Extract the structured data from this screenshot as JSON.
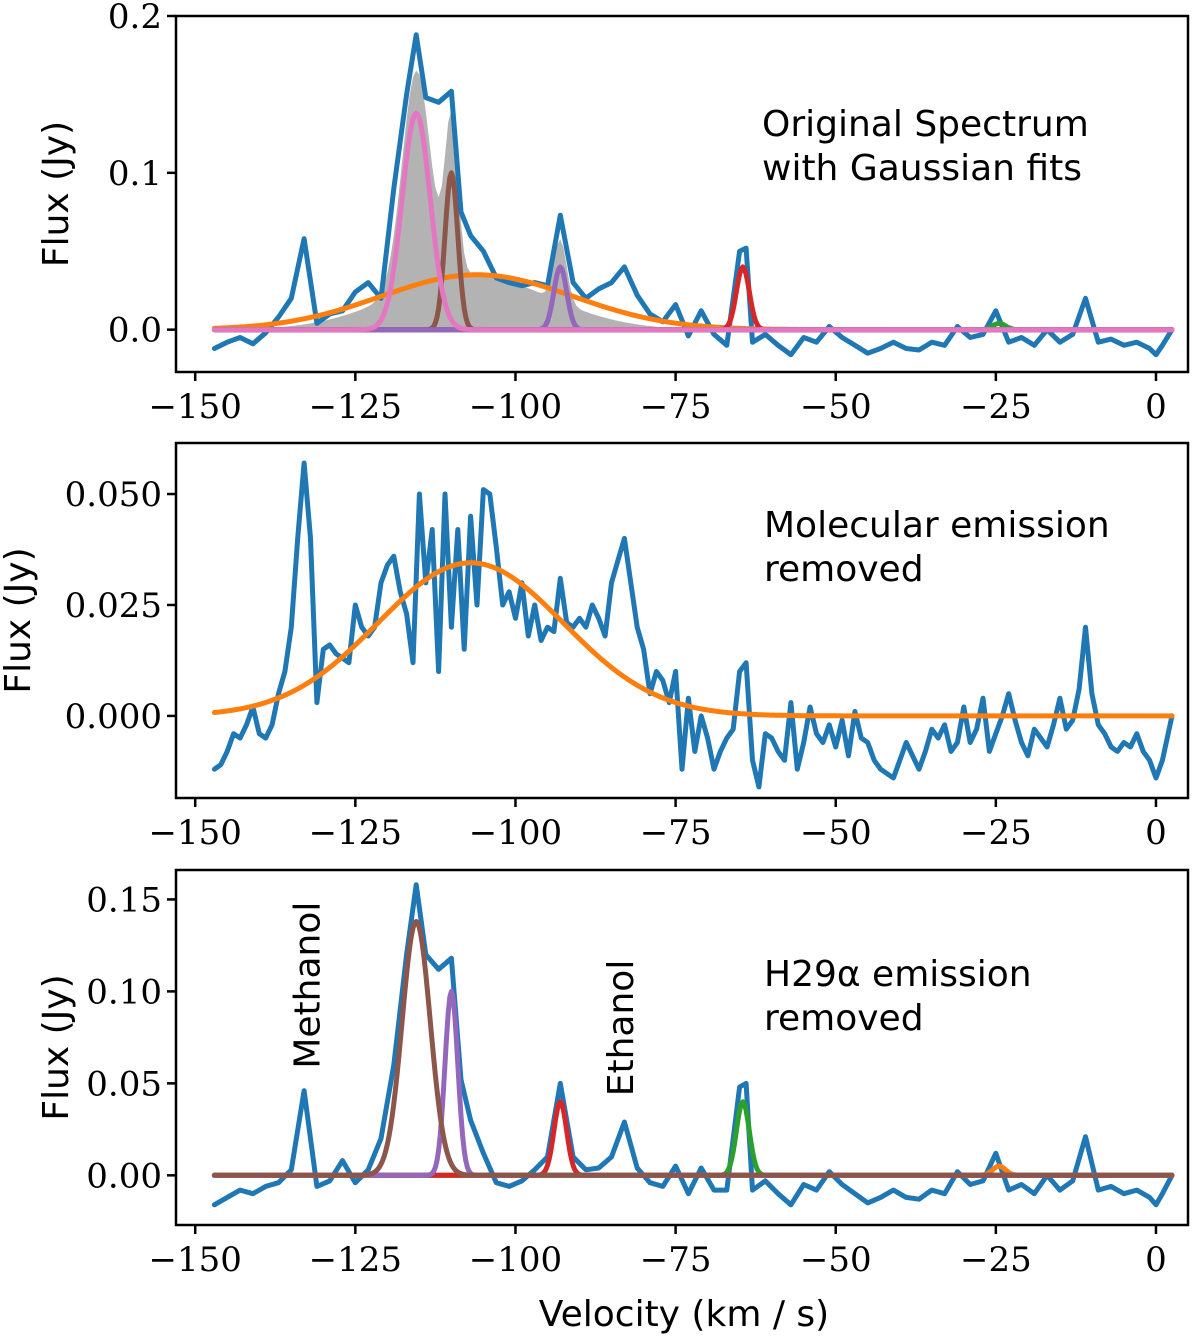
{
  "xlabel": "Velocity (km / s)",
  "colors": {
    "blue": "#1f77b4",
    "orange": "#ff7f0e",
    "green": "#2ca02c",
    "red": "#d62728",
    "purple": "#9467bd",
    "brown": "#8c564b",
    "pink": "#e377c2",
    "gray": "#b3b3b3"
  },
  "chart_data": [
    {
      "type": "line",
      "name": "top",
      "ylabel": "Flux (Jy)",
      "xlim": [
        -153,
        5
      ],
      "ylim": [
        -0.027,
        0.2
      ],
      "xticks": [
        -150,
        -125,
        -100,
        -75,
        -50,
        -25,
        0
      ],
      "xtick_labels": [
        "−150",
        "−125",
        "−100",
        "−75",
        "−50",
        "−25",
        "0"
      ],
      "yticks": [
        0.0,
        0.1,
        0.2
      ],
      "ytick_labels": [
        "0.0",
        "0.1",
        "0.2"
      ],
      "annotation": [
        "Original Spectrum",
        "with Gaussian fits"
      ],
      "spectrum": {
        "name": "observed",
        "color": "blue",
        "x": [
          -147,
          -145,
          -143,
          -141,
          -139,
          -137,
          -135,
          -133,
          -131,
          -129,
          -127,
          -125,
          -123,
          -121,
          -119,
          -117,
          -115.5,
          -114,
          -112,
          -110,
          -108.5,
          -107,
          -105,
          -103,
          -101,
          -99,
          -97,
          -95,
          -93,
          -91,
          -89,
          -87,
          -85,
          -83,
          -81,
          -79,
          -77,
          -75,
          -73,
          -71,
          -69,
          -67,
          -65,
          -64,
          -63,
          -61,
          -59,
          -57,
          -55,
          -53,
          -51,
          -49,
          -47,
          -45,
          -43,
          -41,
          -39,
          -37,
          -35,
          -33,
          -31,
          -29,
          -27,
          -25,
          -23,
          -21,
          -19,
          -17,
          -15,
          -13,
          -11,
          -9,
          -7,
          -5,
          -3,
          -1,
          0,
          1,
          2.5
        ],
        "y": [
          -0.012,
          -0.008,
          -0.005,
          -0.009,
          -0.002,
          0.008,
          0.02,
          0.058,
          0.004,
          0.01,
          0.012,
          0.024,
          0.03,
          0.02,
          0.09,
          0.15,
          0.188,
          0.148,
          0.145,
          0.152,
          0.075,
          0.06,
          0.05,
          0.033,
          0.03,
          0.028,
          0.03,
          0.028,
          0.073,
          0.03,
          0.02,
          0.026,
          0.03,
          0.04,
          0.022,
          0.01,
          0.005,
          0.016,
          -0.004,
          0.012,
          -0.003,
          -0.01,
          0.05,
          0.052,
          -0.008,
          -0.003,
          -0.01,
          -0.016,
          -0.005,
          -0.008,
          0.002,
          -0.005,
          -0.01,
          -0.015,
          -0.012,
          -0.008,
          -0.012,
          -0.013,
          -0.008,
          -0.01,
          0.002,
          -0.005,
          -0.003,
          0.012,
          -0.008,
          -0.005,
          -0.01,
          0.0,
          -0.008,
          -0.003,
          0.02,
          -0.008,
          -0.006,
          -0.01,
          -0.008,
          -0.012,
          -0.016,
          -0.01,
          0.0
        ]
      },
      "fills": [
        {
          "name": "total-fit",
          "color": "gray",
          "peaks": [
            [
              -115.5,
              0.138,
              2.2
            ],
            [
              -110,
              0.1,
              1.0
            ],
            [
              -93,
              0.04,
              1.0
            ],
            [
              -107,
              0.035,
              12
            ]
          ]
        }
      ],
      "gaussians": [
        {
          "name": "gauss-h29a",
          "color": "orange",
          "amp": 0.035,
          "mu": -106,
          "sigma": 15
        },
        {
          "name": "gauss-minor",
          "color": "green",
          "amp": 0.004,
          "mu": -24.5,
          "sigma": 1.0
        },
        {
          "name": "gauss-64",
          "color": "red",
          "amp": 0.04,
          "mu": -64.5,
          "sigma": 1.0
        },
        {
          "name": "gauss-baseline",
          "color": "purple",
          "amp": 0.0,
          "mu": -110,
          "sigma": 1.0
        },
        {
          "name": "gauss-110",
          "color": "brown",
          "amp": 0.1,
          "mu": -110,
          "sigma": 1.0
        },
        {
          "name": "gauss-93",
          "color": "purple",
          "amp": 0.04,
          "mu": -93,
          "sigma": 1.0
        },
        {
          "name": "gauss-115",
          "color": "pink",
          "amp": 0.138,
          "mu": -115.5,
          "sigma": 2.2
        }
      ]
    },
    {
      "type": "line",
      "name": "middle",
      "ylabel": "Flux (Jy)",
      "xlim": [
        -153,
        5
      ],
      "ylim": [
        -0.0185,
        0.0615
      ],
      "xticks": [
        -150,
        -125,
        -100,
        -75,
        -50,
        -25,
        0
      ],
      "xtick_labels": [
        "−150",
        "−125",
        "−100",
        "−75",
        "−50",
        "−25",
        "0"
      ],
      "yticks": [
        0.0,
        0.025,
        0.05
      ],
      "ytick_labels": [
        "0.000",
        "0.025",
        "0.050"
      ],
      "annotation": [
        "Molecular emission",
        "removed"
      ],
      "spectrum": {
        "name": "residual-spectrum",
        "color": "blue",
        "x": [
          -147,
          -146,
          -145,
          -144,
          -143,
          -142,
          -141,
          -140,
          -139,
          -138,
          -137,
          -136,
          -135,
          -134,
          -133,
          -132,
          -131,
          -130,
          -129,
          -128,
          -127,
          -126,
          -125,
          -124,
          -123,
          -122,
          -121,
          -120,
          -119,
          -118,
          -117,
          -116,
          -115,
          -114,
          -113,
          -112,
          -111,
          -110,
          -109,
          -108,
          -107,
          -106,
          -105,
          -104,
          -103,
          -102,
          -101,
          -100,
          -99,
          -98,
          -97,
          -96,
          -95,
          -94,
          -93,
          -92,
          -91,
          -90,
          -89,
          -88,
          -87,
          -86,
          -85,
          -84,
          -83,
          -82,
          -81,
          -80,
          -79,
          -78,
          -77,
          -76,
          -75,
          -74,
          -73,
          -72,
          -71,
          -70,
          -69,
          -68,
          -67,
          -66,
          -65,
          -64,
          -63,
          -62,
          -61,
          -60,
          -59,
          -58,
          -57,
          -56,
          -55,
          -54,
          -53,
          -52,
          -51,
          -50,
          -49,
          -48,
          -47,
          -46,
          -45,
          -44,
          -43,
          -42,
          -41,
          -40,
          -39,
          -38,
          -37,
          -36,
          -35,
          -34,
          -33,
          -32,
          -31,
          -30,
          -29,
          -28,
          -27,
          -26,
          -25,
          -24,
          -23,
          -22,
          -21,
          -20,
          -19,
          -18,
          -17,
          -16,
          -15,
          -14,
          -13,
          -12,
          -11,
          -10,
          -9,
          -8,
          -7,
          -6,
          -5,
          -4,
          -3,
          -2,
          -1,
          0,
          1,
          2.5
        ],
        "y": [
          -0.012,
          -0.011,
          -0.008,
          -0.004,
          -0.005,
          -0.002,
          0.002,
          -0.004,
          -0.005,
          -0.002,
          0.005,
          0.01,
          0.02,
          0.04,
          0.057,
          0.04,
          0.003,
          0.015,
          0.016,
          0.014,
          0.013,
          0.012,
          0.025,
          0.02,
          0.018,
          0.02,
          0.03,
          0.034,
          0.036,
          0.028,
          0.023,
          0.012,
          0.05,
          0.03,
          0.042,
          0.01,
          0.05,
          0.02,
          0.042,
          0.015,
          0.045,
          0.025,
          0.051,
          0.05,
          0.038,
          0.025,
          0.028,
          0.022,
          0.03,
          0.018,
          0.025,
          0.017,
          0.02,
          0.019,
          0.031,
          0.021,
          0.02,
          0.022,
          0.02,
          0.025,
          0.022,
          0.018,
          0.03,
          0.035,
          0.04,
          0.03,
          0.02,
          0.015,
          0.005,
          0.01,
          0.008,
          0.003,
          0.01,
          -0.012,
          0.004,
          -0.008,
          0.0,
          -0.005,
          -0.012,
          -0.008,
          -0.005,
          -0.003,
          0.01,
          0.012,
          -0.01,
          -0.016,
          -0.004,
          -0.005,
          -0.008,
          -0.01,
          0.003,
          -0.012,
          -0.006,
          0.002,
          -0.004,
          -0.006,
          -0.002,
          -0.007,
          -0.001,
          -0.009,
          0.001,
          -0.005,
          -0.006,
          -0.01,
          -0.012,
          -0.013,
          -0.014,
          -0.01,
          -0.006,
          -0.009,
          -0.012,
          -0.008,
          -0.003,
          -0.005,
          -0.002,
          -0.008,
          -0.006,
          0.002,
          -0.006,
          -0.003,
          0.004,
          -0.008,
          -0.004,
          0.0,
          0.005,
          -0.001,
          -0.006,
          -0.009,
          -0.003,
          -0.005,
          -0.007,
          -0.002,
          0.004,
          -0.003,
          -0.001,
          0.006,
          0.02,
          0.005,
          -0.002,
          -0.004,
          -0.007,
          -0.008,
          -0.006,
          -0.007,
          -0.004,
          -0.008,
          -0.01,
          -0.014,
          -0.01,
          0.0
        ]
      },
      "fills": [],
      "gaussians": [
        {
          "name": "gauss-h29a",
          "color": "orange",
          "amp": 0.0345,
          "mu": -107,
          "sigma": 14.5
        }
      ]
    },
    {
      "type": "line",
      "name": "bottom",
      "ylabel": "Flux (Jy)",
      "xlim": [
        -153,
        5
      ],
      "ylim": [
        -0.027,
        0.166
      ],
      "xticks": [
        -150,
        -125,
        -100,
        -75,
        -50,
        -25,
        0
      ],
      "xtick_labels": [
        "−150",
        "−125",
        "−100",
        "−75",
        "−50",
        "−25",
        "0"
      ],
      "yticks": [
        0.0,
        0.05,
        0.1,
        0.15
      ],
      "ytick_labels": [
        "0.00",
        "0.05",
        "0.10",
        "0.15"
      ],
      "annotation": [
        "H29α emission",
        "removed"
      ],
      "labels": [
        {
          "text": "Methanol",
          "x": -132.5,
          "y": 0.058
        },
        {
          "text": "Ethanol",
          "x": -83.5,
          "y": 0.043
        }
      ],
      "spectrum": {
        "name": "molecular-spectrum",
        "color": "blue",
        "x": [
          -147,
          -145,
          -143,
          -141,
          -139,
          -137,
          -135,
          -133,
          -131,
          -129,
          -127,
          -125,
          -123,
          -121,
          -119,
          -117,
          -115.5,
          -114,
          -112,
          -110,
          -108.5,
          -107,
          -105,
          -103,
          -101,
          -99,
          -97,
          -95,
          -93,
          -91,
          -89,
          -87,
          -85,
          -83,
          -81,
          -79,
          -77,
          -75,
          -73,
          -71,
          -69,
          -67,
          -65,
          -64,
          -63,
          -61,
          -59,
          -57,
          -55,
          -53,
          -51,
          -49,
          -47,
          -45,
          -43,
          -41,
          -39,
          -37,
          -35,
          -33,
          -31,
          -29,
          -27,
          -25,
          -23,
          -21,
          -19,
          -17,
          -15,
          -13,
          -11,
          -9,
          -7,
          -5,
          -3,
          -1,
          0,
          1,
          2.5
        ],
        "y": [
          -0.016,
          -0.012,
          -0.008,
          -0.01,
          -0.006,
          -0.004,
          0.003,
          0.046,
          -0.006,
          -0.003,
          0.008,
          -0.004,
          0.003,
          0.02,
          0.06,
          0.12,
          0.158,
          0.12,
          0.112,
          0.118,
          0.052,
          0.03,
          0.012,
          -0.004,
          -0.006,
          -0.003,
          0.003,
          0.01,
          0.05,
          0.01,
          0.003,
          0.004,
          0.01,
          0.029,
          0.004,
          -0.004,
          -0.006,
          0.005,
          -0.01,
          0.004,
          -0.008,
          -0.008,
          0.048,
          0.05,
          -0.008,
          -0.003,
          -0.01,
          -0.016,
          -0.005,
          -0.008,
          0.002,
          -0.005,
          -0.01,
          -0.015,
          -0.012,
          -0.008,
          -0.012,
          -0.013,
          -0.008,
          -0.01,
          0.002,
          -0.005,
          -0.003,
          0.012,
          -0.008,
          -0.005,
          -0.01,
          0.0,
          -0.008,
          -0.003,
          0.021,
          -0.008,
          -0.006,
          -0.01,
          -0.008,
          -0.012,
          -0.016,
          -0.01,
          0.0
        ]
      },
      "fills": [],
      "gaussians": [
        {
          "name": "gauss-25",
          "color": "orange",
          "amp": 0.005,
          "mu": -24.5,
          "sigma": 1.0
        },
        {
          "name": "gauss-64",
          "color": "green",
          "amp": 0.04,
          "mu": -64.5,
          "sigma": 1.0
        },
        {
          "name": "gauss-93",
          "color": "red",
          "amp": 0.04,
          "mu": -93,
          "sigma": 1.0
        },
        {
          "name": "gauss-110",
          "color": "purple",
          "amp": 0.1,
          "mu": -110,
          "sigma": 1.0
        },
        {
          "name": "gauss-115",
          "color": "brown",
          "amp": 0.138,
          "mu": -115.5,
          "sigma": 2.2
        }
      ]
    }
  ]
}
